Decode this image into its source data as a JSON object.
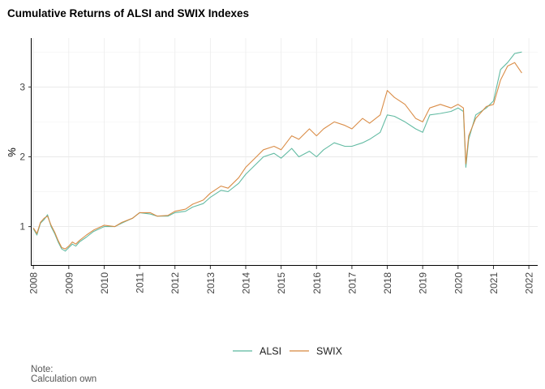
{
  "chart_data": {
    "type": "line",
    "title": "Cumulative Returns of ALSI and SWIX Indexes",
    "xlabel": "",
    "ylabel": "%",
    "xlim": [
      2007.95,
      2022.25
    ],
    "ylim": [
      0.45,
      3.7
    ],
    "x_ticks": [
      "2008",
      "2009",
      "2010",
      "2011",
      "2012",
      "2013",
      "2014",
      "2015",
      "2016",
      "2017",
      "2018",
      "2019",
      "2020",
      "2021",
      "2022"
    ],
    "y_ticks": [
      "1",
      "2",
      "3"
    ],
    "grid": true,
    "legend_position": "bottom",
    "series": [
      {
        "name": "ALSI",
        "color": "#5BB79E",
        "x": [
          2008.0,
          2008.1,
          2008.2,
          2008.3,
          2008.4,
          2008.5,
          2008.6,
          2008.7,
          2008.8,
          2008.9,
          2009.0,
          2009.1,
          2009.2,
          2009.3,
          2009.5,
          2009.7,
          2010.0,
          2010.3,
          2010.5,
          2010.8,
          2011.0,
          2011.3,
          2011.5,
          2011.8,
          2012.0,
          2012.3,
          2012.5,
          2012.8,
          2013.0,
          2013.3,
          2013.5,
          2013.8,
          2014.0,
          2014.3,
          2014.5,
          2014.8,
          2015.0,
          2015.3,
          2015.5,
          2015.8,
          2016.0,
          2016.2,
          2016.5,
          2016.8,
          2017.0,
          2017.3,
          2017.5,
          2017.8,
          2018.0,
          2018.2,
          2018.5,
          2018.8,
          2019.0,
          2019.2,
          2019.5,
          2019.8,
          2020.0,
          2020.15,
          2020.22,
          2020.3,
          2020.5,
          2020.8,
          2021.0,
          2021.2,
          2021.4,
          2021.6,
          2021.8
        ],
        "values": [
          0.97,
          0.88,
          1.05,
          1.1,
          1.17,
          1.0,
          0.9,
          0.78,
          0.68,
          0.65,
          0.7,
          0.75,
          0.72,
          0.78,
          0.85,
          0.93,
          1.0,
          1.0,
          1.05,
          1.12,
          1.2,
          1.18,
          1.15,
          1.15,
          1.2,
          1.22,
          1.28,
          1.33,
          1.42,
          1.52,
          1.5,
          1.62,
          1.75,
          1.9,
          2.0,
          2.05,
          1.98,
          2.12,
          2.0,
          2.08,
          2.0,
          2.1,
          2.2,
          2.15,
          2.15,
          2.2,
          2.25,
          2.35,
          2.6,
          2.58,
          2.5,
          2.4,
          2.35,
          2.6,
          2.62,
          2.65,
          2.7,
          2.65,
          1.85,
          2.25,
          2.6,
          2.7,
          2.8,
          3.25,
          3.35,
          3.48,
          3.5
        ]
      },
      {
        "name": "SWIX",
        "color": "#D8873E",
        "x": [
          2008.0,
          2008.1,
          2008.2,
          2008.3,
          2008.4,
          2008.5,
          2008.6,
          2008.7,
          2008.8,
          2008.9,
          2009.0,
          2009.1,
          2009.2,
          2009.3,
          2009.5,
          2009.7,
          2010.0,
          2010.3,
          2010.5,
          2010.8,
          2011.0,
          2011.3,
          2011.5,
          2011.8,
          2012.0,
          2012.3,
          2012.5,
          2012.8,
          2013.0,
          2013.3,
          2013.5,
          2013.8,
          2014.0,
          2014.3,
          2014.5,
          2014.8,
          2015.0,
          2015.3,
          2015.5,
          2015.8,
          2016.0,
          2016.2,
          2016.5,
          2016.8,
          2017.0,
          2017.3,
          2017.5,
          2017.8,
          2018.0,
          2018.2,
          2018.5,
          2018.8,
          2019.0,
          2019.2,
          2019.5,
          2019.8,
          2020.0,
          2020.15,
          2020.22,
          2020.3,
          2020.5,
          2020.8,
          2021.0,
          2021.2,
          2021.4,
          2021.6,
          2021.8
        ],
        "values": [
          0.98,
          0.9,
          1.06,
          1.12,
          1.15,
          1.02,
          0.92,
          0.8,
          0.7,
          0.68,
          0.72,
          0.78,
          0.75,
          0.8,
          0.88,
          0.95,
          1.02,
          1.0,
          1.06,
          1.12,
          1.2,
          1.2,
          1.15,
          1.16,
          1.22,
          1.25,
          1.32,
          1.38,
          1.48,
          1.58,
          1.55,
          1.7,
          1.85,
          2.0,
          2.1,
          2.15,
          2.1,
          2.3,
          2.25,
          2.4,
          2.3,
          2.4,
          2.5,
          2.45,
          2.4,
          2.55,
          2.48,
          2.6,
          2.95,
          2.85,
          2.75,
          2.55,
          2.5,
          2.7,
          2.75,
          2.7,
          2.75,
          2.7,
          1.9,
          2.3,
          2.55,
          2.72,
          2.75,
          3.1,
          3.3,
          3.35,
          3.2
        ]
      }
    ],
    "note": "Note:",
    "caption": "Calculation own"
  }
}
